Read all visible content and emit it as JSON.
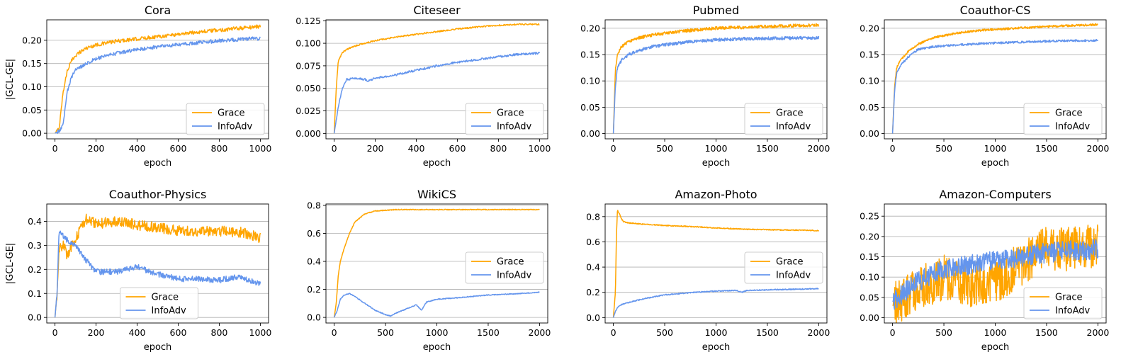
{
  "figure": {
    "colors": {
      "grace": "#FFA500",
      "infoadv": "#6495ED",
      "grid": "#b0b0b0"
    },
    "legend_labels": [
      "Grace",
      "InfoAdv"
    ]
  },
  "chart_data": [
    {
      "type": "line",
      "title": "Cora",
      "xlabel": "epoch",
      "ylabel": "|GCL-GE|",
      "xlim": [
        -40,
        1040
      ],
      "ylim": [
        -0.012,
        0.244
      ],
      "xticks": [
        0,
        200,
        400,
        600,
        800,
        1000
      ],
      "xtick_labels": [
        "0",
        "200",
        "400",
        "600",
        "800",
        "1000"
      ],
      "yticks": [
        0,
        0.05,
        0.1,
        0.15,
        0.2
      ],
      "ytick_labels": [
        "0.00",
        "0.05",
        "0.10",
        "0.15",
        "0.20"
      ],
      "legend": "lower-right",
      "series": [
        {
          "name": "Grace",
          "x": [
            0,
            20,
            40,
            60,
            80,
            100,
            150,
            200,
            300,
            400,
            500,
            600,
            700,
            800,
            900,
            1000
          ],
          "y": [
            0,
            0.01,
            0.09,
            0.135,
            0.155,
            0.168,
            0.183,
            0.19,
            0.198,
            0.203,
            0.208,
            0.213,
            0.218,
            0.222,
            0.226,
            0.23
          ],
          "noise": 0.004
        },
        {
          "name": "InfoAdv",
          "x": [
            0,
            20,
            40,
            60,
            80,
            100,
            150,
            200,
            300,
            400,
            500,
            600,
            700,
            800,
            900,
            1000
          ],
          "y": [
            0,
            0.005,
            0.02,
            0.09,
            0.12,
            0.135,
            0.15,
            0.16,
            0.172,
            0.18,
            0.186,
            0.19,
            0.195,
            0.199,
            0.202,
            0.204
          ],
          "noise": 0.004
        }
      ]
    },
    {
      "type": "line",
      "title": "Citeseer",
      "xlabel": "epoch",
      "ylabel": "",
      "xlim": [
        -40,
        1040
      ],
      "ylim": [
        -0.006,
        0.126
      ],
      "xticks": [
        0,
        200,
        400,
        600,
        800,
        1000
      ],
      "xtick_labels": [
        "0",
        "200",
        "400",
        "600",
        "800",
        "1000"
      ],
      "yticks": [
        0,
        0.025,
        0.05,
        0.075,
        0.1,
        0.125
      ],
      "ytick_labels": [
        "0.000",
        "0.025",
        "0.050",
        "0.075",
        "0.100",
        "0.125"
      ],
      "legend": "lower-right",
      "series": [
        {
          "name": "Grace",
          "x": [
            0,
            10,
            20,
            40,
            60,
            100,
            200,
            300,
            400,
            500,
            600,
            700,
            800,
            900,
            1000
          ],
          "y": [
            0,
            0.05,
            0.08,
            0.09,
            0.093,
            0.097,
            0.103,
            0.107,
            0.11,
            0.113,
            0.116,
            0.118,
            0.12,
            0.121,
            0.121
          ],
          "noise": 0.0008
        },
        {
          "name": "InfoAdv",
          "x": [
            0,
            20,
            40,
            60,
            100,
            150,
            160,
            200,
            300,
            400,
            500,
            600,
            700,
            800,
            900,
            1000
          ],
          "y": [
            0,
            0.03,
            0.05,
            0.06,
            0.061,
            0.06,
            0.058,
            0.061,
            0.065,
            0.07,
            0.075,
            0.079,
            0.082,
            0.085,
            0.088,
            0.089
          ],
          "noise": 0.0012
        }
      ]
    },
    {
      "type": "line",
      "title": "Pubmed",
      "xlabel": "epoch",
      "ylabel": "",
      "xlim": [
        -80,
        2080
      ],
      "ylim": [
        -0.01,
        0.216
      ],
      "xticks": [
        0,
        500,
        1000,
        1500,
        2000
      ],
      "xtick_labels": [
        "0",
        "500",
        "1000",
        "1500",
        "2000"
      ],
      "yticks": [
        0,
        0.05,
        0.1,
        0.15,
        0.2
      ],
      "ytick_labels": [
        "0.00",
        "0.05",
        "0.10",
        "0.15",
        "0.20"
      ],
      "legend": "lower-right",
      "series": [
        {
          "name": "Grace",
          "x": [
            0,
            20,
            40,
            80,
            150,
            250,
            400,
            600,
            800,
            1000,
            1300,
            1600,
            2000
          ],
          "y": [
            0,
            0.12,
            0.15,
            0.165,
            0.175,
            0.182,
            0.188,
            0.193,
            0.197,
            0.2,
            0.202,
            0.204,
            0.206
          ],
          "noise": 0.003
        },
        {
          "name": "InfoAdv",
          "x": [
            0,
            20,
            40,
            80,
            150,
            250,
            400,
            600,
            800,
            1000,
            1300,
            1600,
            2000
          ],
          "y": [
            0,
            0.09,
            0.125,
            0.14,
            0.15,
            0.158,
            0.166,
            0.171,
            0.175,
            0.178,
            0.18,
            0.181,
            0.182
          ],
          "noise": 0.003
        }
      ]
    },
    {
      "type": "line",
      "title": "Coauthor-CS",
      "xlabel": "epoch",
      "ylabel": "",
      "xlim": [
        -80,
        2080
      ],
      "ylim": [
        -0.01,
        0.216
      ],
      "xticks": [
        0,
        500,
        1000,
        1500,
        2000
      ],
      "xtick_labels": [
        "0",
        "500",
        "1000",
        "1500",
        "2000"
      ],
      "yticks": [
        0,
        0.05,
        0.1,
        0.15,
        0.2
      ],
      "ytick_labels": [
        "0.00",
        "0.05",
        "0.10",
        "0.15",
        "0.20"
      ],
      "legend": "lower-right",
      "series": [
        {
          "name": "Grace",
          "x": [
            0,
            20,
            40,
            80,
            150,
            250,
            400,
            600,
            800,
            1000,
            1300,
            1600,
            2000
          ],
          "y": [
            0,
            0.09,
            0.125,
            0.14,
            0.155,
            0.17,
            0.182,
            0.19,
            0.195,
            0.198,
            0.201,
            0.204,
            0.207
          ],
          "noise": 0.002
        },
        {
          "name": "InfoAdv",
          "x": [
            0,
            20,
            40,
            80,
            150,
            250,
            400,
            600,
            800,
            1000,
            1300,
            1600,
            2000
          ],
          "y": [
            0,
            0.08,
            0.115,
            0.13,
            0.145,
            0.16,
            0.165,
            0.168,
            0.17,
            0.172,
            0.174,
            0.176,
            0.177
          ],
          "noise": 0.002
        }
      ]
    },
    {
      "type": "line",
      "title": "Coauthor-Physics",
      "xlabel": "epoch",
      "ylabel": "|GCL-GE|",
      "xlim": [
        -40,
        1040
      ],
      "ylim": [
        -0.023,
        0.472
      ],
      "xticks": [
        0,
        200,
        400,
        600,
        800,
        1000
      ],
      "xtick_labels": [
        "0",
        "200",
        "400",
        "600",
        "800",
        "1000"
      ],
      "yticks": [
        0,
        0.1,
        0.2,
        0.3,
        0.4
      ],
      "ytick_labels": [
        "0.0",
        "0.1",
        "0.2",
        "0.3",
        "0.4"
      ],
      "legend": "lower-center",
      "series": [
        {
          "name": "Grace",
          "x": [
            0,
            10,
            20,
            40,
            60,
            100,
            150,
            200,
            300,
            400,
            500,
            600,
            700,
            800,
            900,
            1000
          ],
          "y": [
            0,
            0.1,
            0.28,
            0.3,
            0.26,
            0.33,
            0.41,
            0.39,
            0.4,
            0.385,
            0.375,
            0.36,
            0.36,
            0.36,
            0.355,
            0.33
          ],
          "noise": 0.022
        },
        {
          "name": "InfoAdv",
          "x": [
            0,
            10,
            20,
            40,
            60,
            100,
            150,
            200,
            300,
            400,
            500,
            600,
            700,
            800,
            900,
            1000
          ],
          "y": [
            0,
            0.1,
            0.36,
            0.34,
            0.32,
            0.3,
            0.24,
            0.19,
            0.19,
            0.21,
            0.18,
            0.16,
            0.16,
            0.155,
            0.17,
            0.14
          ],
          "noise": 0.012
        }
      ]
    },
    {
      "type": "line",
      "title": "WikiCS",
      "xlabel": "epoch",
      "ylabel": "",
      "xlim": [
        -80,
        2080
      ],
      "ylim": [
        -0.04,
        0.81
      ],
      "xticks": [
        0,
        500,
        1000,
        1500,
        2000
      ],
      "xtick_labels": [
        "0",
        "500",
        "1000",
        "1500",
        "2000"
      ],
      "yticks": [
        0,
        0.2,
        0.4,
        0.6,
        0.8
      ],
      "ytick_labels": [
        "0.0",
        "0.2",
        "0.4",
        "0.6",
        "0.8"
      ],
      "legend": "center-right",
      "series": [
        {
          "name": "Grace",
          "x": [
            0,
            20,
            40,
            60,
            100,
            150,
            200,
            300,
            400,
            500,
            600,
            800,
            1000,
            1500,
            2000
          ],
          "y": [
            0,
            0.1,
            0.3,
            0.4,
            0.5,
            0.6,
            0.68,
            0.74,
            0.76,
            0.765,
            0.77,
            0.77,
            0.77,
            0.77,
            0.77
          ],
          "noise": 0.003
        },
        {
          "name": "InfoAdv",
          "x": [
            0,
            30,
            60,
            100,
            150,
            200,
            300,
            400,
            500,
            550,
            600,
            700,
            800,
            850,
            900,
            1000,
            1200,
            1500,
            1800,
            2000
          ],
          "y": [
            0,
            0.05,
            0.13,
            0.16,
            0.17,
            0.15,
            0.1,
            0.05,
            0.02,
            0.01,
            0.03,
            0.06,
            0.09,
            0.05,
            0.11,
            0.13,
            0.14,
            0.16,
            0.17,
            0.18
          ],
          "noise": 0.003
        }
      ]
    },
    {
      "type": "line",
      "title": "Amazon-Photo",
      "xlabel": "epoch",
      "ylabel": "",
      "xlim": [
        -80,
        2080
      ],
      "ylim": [
        -0.043,
        0.9
      ],
      "xticks": [
        0,
        500,
        1000,
        1500,
        2000
      ],
      "xtick_labels": [
        "0",
        "500",
        "1000",
        "1500",
        "2000"
      ],
      "yticks": [
        0,
        0.2,
        0.4,
        0.6,
        0.8
      ],
      "ytick_labels": [
        "0.0",
        "0.2",
        "0.4",
        "0.6",
        "0.8"
      ],
      "legend": "center-right",
      "series": [
        {
          "name": "Grace",
          "x": [
            0,
            20,
            30,
            40,
            60,
            80,
            100,
            150,
            300,
            500,
            800,
            1000,
            1300,
            1600,
            2000
          ],
          "y": [
            0,
            0.2,
            0.65,
            0.85,
            0.82,
            0.78,
            0.76,
            0.75,
            0.74,
            0.73,
            0.72,
            0.71,
            0.7,
            0.695,
            0.69
          ],
          "noise": 0.004
        },
        {
          "name": "InfoAdv",
          "x": [
            0,
            20,
            50,
            100,
            200,
            300,
            500,
            800,
            1000,
            1200,
            1250,
            1300,
            1500,
            1800,
            2000
          ],
          "y": [
            0,
            0.05,
            0.09,
            0.11,
            0.13,
            0.15,
            0.18,
            0.2,
            0.21,
            0.215,
            0.2,
            0.215,
            0.22,
            0.225,
            0.23
          ],
          "noise": 0.004
        }
      ]
    },
    {
      "type": "line",
      "title": "Amazon-Computers",
      "xlabel": "epoch",
      "ylabel": "",
      "xlim": [
        -80,
        2080
      ],
      "ylim": [
        -0.013,
        0.28
      ],
      "xticks": [
        0,
        500,
        1000,
        1500,
        2000
      ],
      "xtick_labels": [
        "0",
        "500",
        "1000",
        "1500",
        "2000"
      ],
      "yticks": [
        0,
        0.05,
        0.1,
        0.15,
        0.2,
        0.25
      ],
      "ytick_labels": [
        "0.00",
        "0.05",
        "0.10",
        "0.15",
        "0.20",
        "0.25"
      ],
      "legend": "lower-right",
      "series": [
        {
          "name": "Grace",
          "x": [
            0,
            250,
            500,
            750,
            1000,
            1250,
            1500,
            1750,
            2000
          ],
          "y": [
            0.03,
            0.07,
            0.1,
            0.08,
            0.09,
            0.13,
            0.17,
            0.17,
            0.18
          ],
          "noise": 0.055
        },
        {
          "name": "InfoAdv",
          "x": [
            0,
            250,
            500,
            750,
            1000,
            1250,
            1500,
            1750,
            2000
          ],
          "y": [
            0.04,
            0.09,
            0.12,
            0.13,
            0.14,
            0.15,
            0.16,
            0.165,
            0.17
          ],
          "noise": 0.025
        }
      ]
    }
  ]
}
